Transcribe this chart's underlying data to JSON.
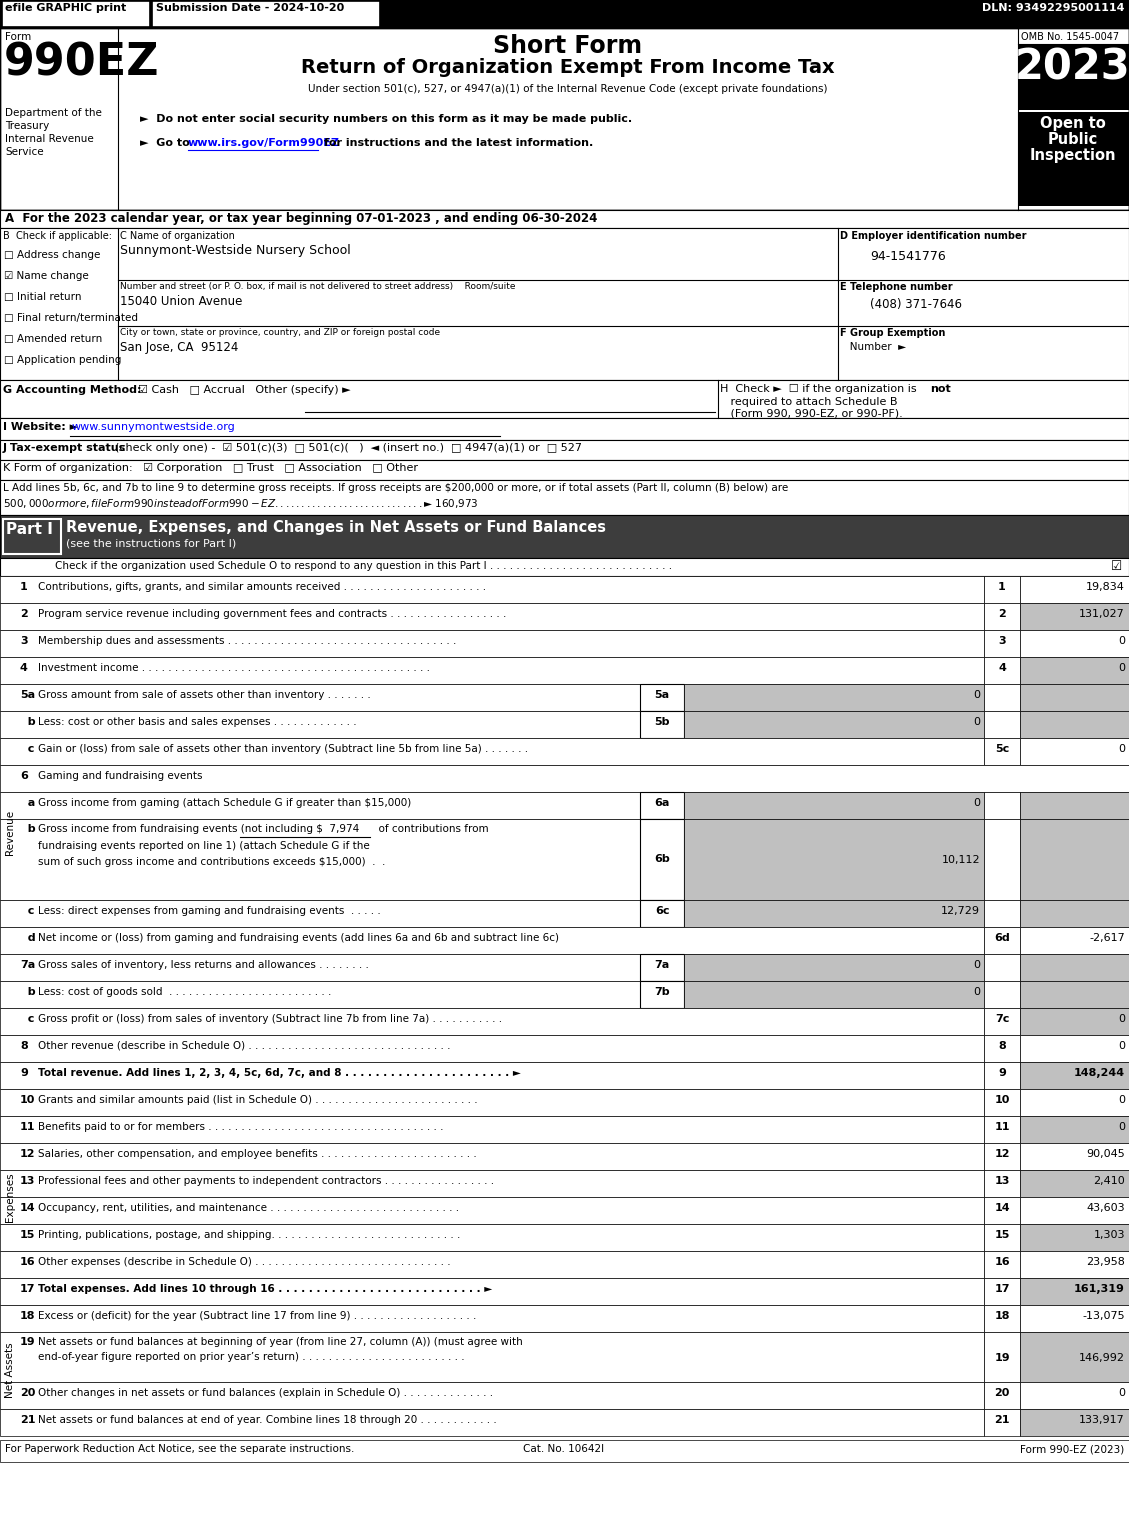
{
  "title_short_form": "Short Form",
  "title_main": "Return of Organization Exempt From Income Tax",
  "subtitle": "Under section 501(c), 527, or 4947(a)(1) of the Internal Revenue Code (except private foundations)",
  "bullet1": "►  Do not enter social security numbers on this form as it may be made public.",
  "bullet2_pre": "►  Go to ",
  "bullet2_link": "www.irs.gov/Form990EZ",
  "bullet2_post": " for instructions and the latest information.",
  "form_number": "990EZ",
  "year": "2023",
  "omb": "OMB No. 1545-0047",
  "efile_text": "efile GRAPHIC print",
  "submission_date": "Submission Date - 2024-10-20",
  "dln": "DLN: 93492295001114",
  "dept_line1": "Department of the",
  "dept_line2": "Treasury",
  "dept_line3": "Internal Revenue",
  "dept_line4": "Service",
  "section_A": "A  For the 2023 calendar year, or tax year beginning 07-01-2023 , and ending 06-30-2024",
  "checkboxes_B": [
    {
      "label": "Address change",
      "checked": false
    },
    {
      "label": "Name change",
      "checked": true
    },
    {
      "label": "Initial return",
      "checked": false
    },
    {
      "label": "Final return/terminated",
      "checked": false
    },
    {
      "label": "Amended return",
      "checked": false
    },
    {
      "label": "Application pending",
      "checked": false
    }
  ],
  "org_name": "Sunnymont-Westside Nursery School",
  "street_label": "Number and street (or P. O. box, if mail is not delivered to street address)    Room/suite",
  "street": "15040 Union Avenue",
  "city_label": "City or town, state or province, country, and ZIP or foreign postal code",
  "city": "San Jose, CA  95124",
  "ein": "94-1541776",
  "phone": "(408) 371-7646",
  "website": "www.sunnymontwestside.org",
  "line_L_1": "L Add lines 5b, 6c, and 7b to line 9 to determine gross receipts. If gross receipts are $200,000 or more, or if total assets (Part II, column (B) below) are",
  "line_L_2": "$500,000 or more, file Form 990 instead of Form 990-EZ . . . . . . . . . . . . . . . . . . . . . . . . . . . . ► $ 160,973",
  "revenue_rows": [
    {
      "num": "1",
      "desc": "Contributions, gifts, grants, and similar amounts received . . . . . . . . . . . . . . . . . . . . . .",
      "lnum": "1",
      "val": "19,834",
      "shade": false
    },
    {
      "num": "2",
      "desc": "Program service revenue including government fees and contracts . . . . . . . . . . . . . . . . . .",
      "lnum": "2",
      "val": "131,027",
      "shade": true
    },
    {
      "num": "3",
      "desc": "Membership dues and assessments . . . . . . . . . . . . . . . . . . . . . . . . . . . . . . . . . . .",
      "lnum": "3",
      "val": "0",
      "shade": false
    },
    {
      "num": "4",
      "desc": "Investment income . . . . . . . . . . . . . . . . . . . . . . . . . . . . . . . . . . . . . . . . . . . .",
      "lnum": "4",
      "val": "0",
      "shade": true
    }
  ],
  "expense_rows": [
    {
      "num": "10",
      "desc": "Grants and similar amounts paid (list in Schedule O) . . . . . . . . . . . . . . . . . . . . . . . . .",
      "lnum": "10",
      "val": "0",
      "shade": false
    },
    {
      "num": "11",
      "desc": "Benefits paid to or for members . . . . . . . . . . . . . . . . . . . . . . . . . . . . . . . . . . . .",
      "lnum": "11",
      "val": "0",
      "shade": true
    },
    {
      "num": "12",
      "desc": "Salaries, other compensation, and employee benefits . . . . . . . . . . . . . . . . . . . . . . . .",
      "lnum": "12",
      "val": "90,045",
      "shade": false
    },
    {
      "num": "13",
      "desc": "Professional fees and other payments to independent contractors . . . . . . . . . . . . . . . . .",
      "lnum": "13",
      "val": "2,410",
      "shade": true
    },
    {
      "num": "14",
      "desc": "Occupancy, rent, utilities, and maintenance . . . . . . . . . . . . . . . . . . . . . . . . . . . . .",
      "lnum": "14",
      "val": "43,603",
      "shade": false
    },
    {
      "num": "15",
      "desc": "Printing, publications, postage, and shipping. . . . . . . . . . . . . . . . . . . . . . . . . . . . .",
      "lnum": "15",
      "val": "1,303",
      "shade": true
    },
    {
      "num": "16",
      "desc": "Other expenses (describe in Schedule O) . . . . . . . . . . . . . . . . . . . . . . . . . . . . . .",
      "lnum": "16",
      "val": "23,958",
      "shade": false
    },
    {
      "num": "17",
      "desc": "Total expenses. Add lines 10 through 16 . . . . . . . . . . . . . . . . . . . . . . . . . . . ►",
      "lnum": "17",
      "val": "161,319",
      "shade": true,
      "bold": true
    }
  ],
  "net_rows": [
    {
      "num": "18",
      "desc": "Excess or (deficit) for the year (Subtract line 17 from line 9) . . . . . . . . . . . . . . . . . . .",
      "lnum": "18",
      "val": "-13,075",
      "shade": false,
      "two_line": false
    },
    {
      "num": "19",
      "desc": "Net assets or fund balances at beginning of year (from line 27, column (A)) (must agree with",
      "desc2": "end-of-year figure reported on prior year’s return) . . . . . . . . . . . . . . . . . . . . . . . . .",
      "lnum": "19",
      "val": "146,992",
      "shade": true,
      "two_line": true
    },
    {
      "num": "20",
      "desc": "Other changes in net assets or fund balances (explain in Schedule O) . . . . . . . . . . . . . .",
      "lnum": "20",
      "val": "0",
      "shade": false,
      "two_line": false
    },
    {
      "num": "21",
      "desc": "Net assets or fund balances at end of year. Combine lines 18 through 20 . . . . . . . . . . . .",
      "lnum": "21",
      "val": "133,917",
      "shade": true,
      "two_line": false
    }
  ],
  "footer_left": "For Paperwork Reduction Act Notice, see the separate instructions.",
  "footer_cat": "Cat. No. 10642I",
  "footer_right": "Form 990-EZ (2023)"
}
